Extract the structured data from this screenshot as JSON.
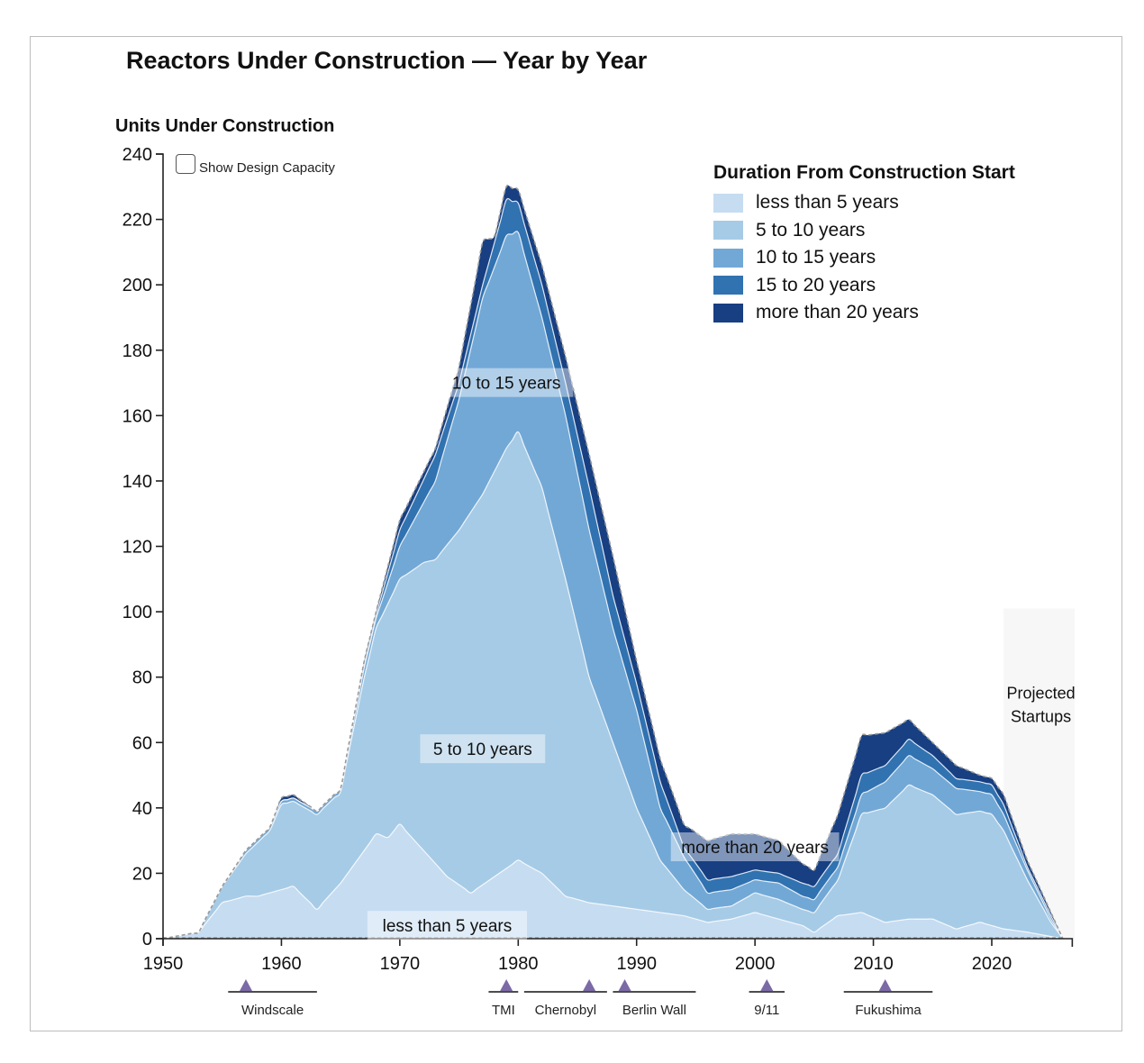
{
  "chart_data": {
    "type": "area",
    "stacked": true,
    "title": "Reactors Under Construction — Year by Year",
    "ylabel": "Units Under Construction",
    "xlabel": "",
    "xlim": [
      1950,
      2027
    ],
    "ylim": [
      0,
      240
    ],
    "x_ticks": [
      1950,
      1960,
      1970,
      1980,
      1990,
      2000,
      2010,
      2020
    ],
    "y_ticks": [
      0,
      20,
      40,
      60,
      80,
      100,
      120,
      140,
      160,
      180,
      200,
      220,
      240
    ],
    "grid": false,
    "legend_title": "Duration From Construction Start",
    "legend_position": "top-right",
    "series_note": "values are cumulative stacked tops (upper boundary of each band), read from chart",
    "series": [
      {
        "name": "less than 5 years",
        "color": "#c6dcf1",
        "points": [
          [
            1950,
            0
          ],
          [
            1953,
            2
          ],
          [
            1955,
            11
          ],
          [
            1957,
            13
          ],
          [
            1958,
            13
          ],
          [
            1960,
            15
          ],
          [
            1961,
            16
          ],
          [
            1963,
            9
          ],
          [
            1965,
            17
          ],
          [
            1967,
            27
          ],
          [
            1968,
            32
          ],
          [
            1969,
            31
          ],
          [
            1970,
            35
          ],
          [
            1972,
            27
          ],
          [
            1974,
            19
          ],
          [
            1976,
            14
          ],
          [
            1978,
            19
          ],
          [
            1980,
            24
          ],
          [
            1982,
            20
          ],
          [
            1984,
            13
          ],
          [
            1986,
            11
          ],
          [
            1988,
            10
          ],
          [
            1990,
            9
          ],
          [
            1992,
            8
          ],
          [
            1994,
            7
          ],
          [
            1996,
            5
          ],
          [
            1998,
            6
          ],
          [
            2000,
            8
          ],
          [
            2002,
            6
          ],
          [
            2004,
            4
          ],
          [
            2005,
            2
          ],
          [
            2007,
            7
          ],
          [
            2009,
            8
          ],
          [
            2011,
            5
          ],
          [
            2013,
            6
          ],
          [
            2015,
            6
          ],
          [
            2017,
            3
          ],
          [
            2019,
            5
          ],
          [
            2021,
            3
          ],
          [
            2023,
            2
          ],
          [
            2026,
            0
          ]
        ]
      },
      {
        "name": "5 to 10 years",
        "color": "#a6cbe6",
        "points": [
          [
            1950,
            0
          ],
          [
            1953,
            2
          ],
          [
            1955,
            16
          ],
          [
            1957,
            26
          ],
          [
            1959,
            33
          ],
          [
            1960,
            41
          ],
          [
            1961,
            42
          ],
          [
            1963,
            38
          ],
          [
            1965,
            45
          ],
          [
            1967,
            80
          ],
          [
            1968,
            95
          ],
          [
            1970,
            110
          ],
          [
            1972,
            115
          ],
          [
            1973,
            116
          ],
          [
            1975,
            125
          ],
          [
            1977,
            136
          ],
          [
            1979,
            150
          ],
          [
            1980,
            155
          ],
          [
            1982,
            138
          ],
          [
            1984,
            110
          ],
          [
            1986,
            80
          ],
          [
            1988,
            60
          ],
          [
            1990,
            40
          ],
          [
            1992,
            24
          ],
          [
            1994,
            15
          ],
          [
            1996,
            9
          ],
          [
            1998,
            10
          ],
          [
            2000,
            14
          ],
          [
            2002,
            12
          ],
          [
            2004,
            9
          ],
          [
            2005,
            8
          ],
          [
            2007,
            18
          ],
          [
            2009,
            38
          ],
          [
            2011,
            40
          ],
          [
            2013,
            47
          ],
          [
            2015,
            44
          ],
          [
            2017,
            38
          ],
          [
            2019,
            39
          ],
          [
            2020,
            38
          ],
          [
            2021,
            33
          ],
          [
            2023,
            18
          ],
          [
            2025,
            5
          ],
          [
            2026,
            0
          ]
        ]
      },
      {
        "name": "10 to 15 years",
        "color": "#72a8d6",
        "points": [
          [
            1950,
            0
          ],
          [
            1953,
            2
          ],
          [
            1955,
            16
          ],
          [
            1957,
            27
          ],
          [
            1959,
            34
          ],
          [
            1960,
            42
          ],
          [
            1961,
            43
          ],
          [
            1963,
            39
          ],
          [
            1965,
            46
          ],
          [
            1967,
            83
          ],
          [
            1968,
            98
          ],
          [
            1970,
            120
          ],
          [
            1973,
            140
          ],
          [
            1975,
            165
          ],
          [
            1977,
            196
          ],
          [
            1979,
            215
          ],
          [
            1980,
            216
          ],
          [
            1982,
            190
          ],
          [
            1984,
            160
          ],
          [
            1986,
            125
          ],
          [
            1988,
            95
          ],
          [
            1990,
            70
          ],
          [
            1992,
            40
          ],
          [
            1994,
            25
          ],
          [
            1996,
            14
          ],
          [
            1998,
            15
          ],
          [
            2000,
            18
          ],
          [
            2002,
            17
          ],
          [
            2004,
            13
          ],
          [
            2005,
            12
          ],
          [
            2007,
            22
          ],
          [
            2009,
            44
          ],
          [
            2011,
            48
          ],
          [
            2013,
            56
          ],
          [
            2015,
            52
          ],
          [
            2017,
            46
          ],
          [
            2019,
            45
          ],
          [
            2020,
            44
          ],
          [
            2021,
            38
          ],
          [
            2023,
            21
          ],
          [
            2025,
            6
          ],
          [
            2026,
            0
          ]
        ]
      },
      {
        "name": "15 to 20 years",
        "color": "#3172b1",
        "points": [
          [
            1950,
            0
          ],
          [
            1953,
            2
          ],
          [
            1955,
            16
          ],
          [
            1957,
            27
          ],
          [
            1959,
            34
          ],
          [
            1960,
            42
          ],
          [
            1961,
            43
          ],
          [
            1963,
            39
          ],
          [
            1965,
            46
          ],
          [
            1967,
            84
          ],
          [
            1968,
            99
          ],
          [
            1970,
            125
          ],
          [
            1973,
            148
          ],
          [
            1975,
            170
          ],
          [
            1977,
            200
          ],
          [
            1979,
            226
          ],
          [
            1980,
            225
          ],
          [
            1982,
            200
          ],
          [
            1984,
            170
          ],
          [
            1986,
            138
          ],
          [
            1988,
            105
          ],
          [
            1990,
            78
          ],
          [
            1992,
            48
          ],
          [
            1994,
            28
          ],
          [
            1996,
            18
          ],
          [
            1998,
            19
          ],
          [
            2000,
            21
          ],
          [
            2002,
            20
          ],
          [
            2004,
            17
          ],
          [
            2005,
            16
          ],
          [
            2007,
            26
          ],
          [
            2009,
            50
          ],
          [
            2011,
            53
          ],
          [
            2013,
            61
          ],
          [
            2015,
            56
          ],
          [
            2017,
            49
          ],
          [
            2019,
            48
          ],
          [
            2020,
            47
          ],
          [
            2021,
            41
          ],
          [
            2023,
            22
          ],
          [
            2025,
            7
          ],
          [
            2026,
            0
          ]
        ]
      },
      {
        "name": "more than 20 years",
        "color": "#173f82",
        "points": [
          [
            1950,
            0
          ],
          [
            1953,
            2
          ],
          [
            1955,
            16
          ],
          [
            1957,
            27
          ],
          [
            1959,
            34
          ],
          [
            1960,
            43
          ],
          [
            1961,
            44
          ],
          [
            1963,
            39
          ],
          [
            1965,
            46
          ],
          [
            1967,
            85
          ],
          [
            1968,
            100
          ],
          [
            1970,
            128
          ],
          [
            1973,
            150
          ],
          [
            1975,
            175
          ],
          [
            1977,
            213
          ],
          [
            1978,
            215
          ],
          [
            1979,
            230
          ],
          [
            1980,
            229
          ],
          [
            1982,
            206
          ],
          [
            1984,
            178
          ],
          [
            1986,
            148
          ],
          [
            1988,
            117
          ],
          [
            1990,
            85
          ],
          [
            1992,
            55
          ],
          [
            1994,
            35
          ],
          [
            1996,
            30
          ],
          [
            1998,
            32
          ],
          [
            2000,
            32
          ],
          [
            2002,
            30
          ],
          [
            2004,
            23
          ],
          [
            2005,
            21
          ],
          [
            2007,
            38
          ],
          [
            2009,
            62
          ],
          [
            2011,
            63
          ],
          [
            2013,
            67
          ],
          [
            2015,
            60
          ],
          [
            2017,
            53
          ],
          [
            2019,
            50
          ],
          [
            2020,
            49
          ],
          [
            2021,
            44
          ],
          [
            2023,
            24
          ],
          [
            2025,
            8
          ],
          [
            2026,
            0
          ]
        ]
      }
    ],
    "band_labels": [
      {
        "text": "10 to 15 years",
        "x": 1979,
        "y": 169
      },
      {
        "text": "5 to 10 years",
        "x": 1977,
        "y": 57
      },
      {
        "text": "more than 20 years",
        "x": 2000,
        "y": 27
      },
      {
        "text": "less than 5 years",
        "x": 1974,
        "y": 3
      }
    ],
    "projected_region": {
      "label_line1": "Projected",
      "label_line2": "Startups",
      "x_start": 2021,
      "x_end": 2027,
      "y_top": 101
    },
    "events": [
      {
        "label": "Windscale",
        "year": 1957,
        "range": [
          1955.5,
          1963
        ]
      },
      {
        "label": "TMI",
        "year": 1979,
        "range": [
          1977.5,
          1980
        ]
      },
      {
        "label": "Chernobyl",
        "year": 1986,
        "range": [
          1980.5,
          1987.5
        ]
      },
      {
        "label": "Berlin Wall",
        "year": 1989,
        "range": [
          1988,
          1995
        ]
      },
      {
        "label": "9/11",
        "year": 2001,
        "range": [
          1999.5,
          2002.5
        ]
      },
      {
        "label": "Fukushima",
        "year": 2011,
        "range": [
          2007.5,
          2015
        ]
      }
    ]
  },
  "controls": {
    "show_capacity_label": "Show Design Capacity",
    "show_capacity_checked": false
  },
  "colors": {
    "event_marker": "#7b6aa6",
    "projected_bg": "#f7f7f7",
    "total_outline": "#9a9a9a"
  }
}
